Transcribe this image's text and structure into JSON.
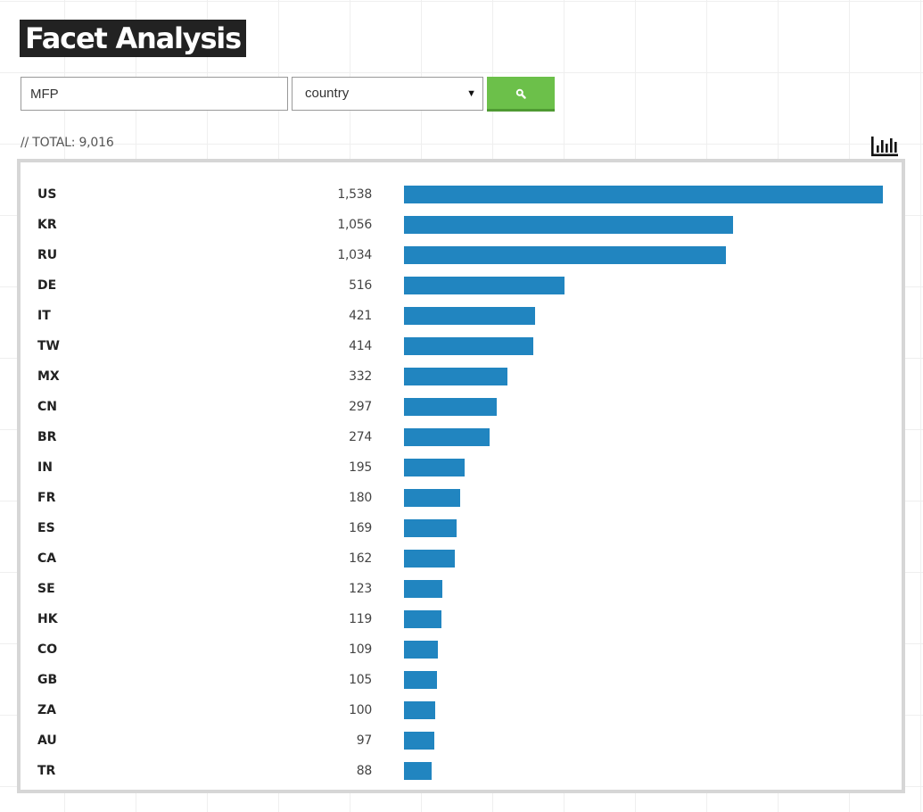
{
  "header": {
    "title": "Facet Analysis"
  },
  "search": {
    "query": "MFP",
    "facet_selected": "country",
    "button_icon": "search-icon",
    "colors": {
      "button": "#6cc04a",
      "bar": "#2185c0"
    }
  },
  "summary": {
    "total_label": "// TOTAL: 9,016",
    "chart_toggle_icon": "bar-chart-icon"
  },
  "chart_data": {
    "type": "bar",
    "orientation": "horizontal",
    "categories": [
      "US",
      "KR",
      "RU",
      "DE",
      "IT",
      "TW",
      "MX",
      "CN",
      "BR",
      "IN",
      "FR",
      "ES",
      "CA",
      "SE",
      "HK",
      "CO",
      "GB",
      "ZA",
      "AU",
      "TR"
    ],
    "values": [
      1538,
      1056,
      1034,
      516,
      421,
      414,
      332,
      297,
      274,
      195,
      180,
      169,
      162,
      123,
      119,
      109,
      105,
      100,
      97,
      88
    ],
    "value_labels": [
      "1,538",
      "1,056",
      "1,034",
      "516",
      "421",
      "414",
      "332",
      "297",
      "274",
      "195",
      "180",
      "169",
      "162",
      "123",
      "119",
      "109",
      "105",
      "100",
      "97",
      "88"
    ],
    "grid": false
  }
}
